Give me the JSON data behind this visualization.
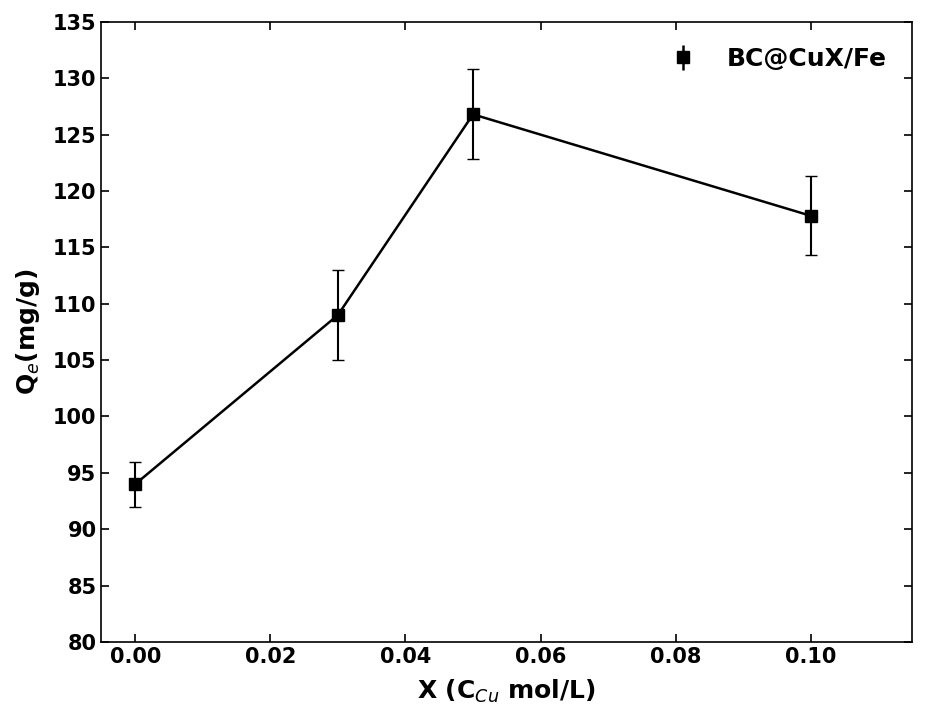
{
  "x": [
    0.0,
    0.03,
    0.05,
    0.1
  ],
  "y": [
    94.0,
    109.0,
    126.8,
    117.8
  ],
  "yerr": [
    2.0,
    4.0,
    4.0,
    3.5
  ],
  "xlabel": "X (C$_{Cu}$ mol/L)",
  "ylabel": "Q$_e$(mg/g)",
  "xlim": [
    -0.005,
    0.115
  ],
  "ylim": [
    80,
    135
  ],
  "xticks": [
    0.0,
    0.02,
    0.04,
    0.06,
    0.08,
    0.1
  ],
  "yticks": [
    80,
    85,
    90,
    95,
    100,
    105,
    110,
    115,
    120,
    125,
    130,
    135
  ],
  "legend_label": "BC@CuX/Fe",
  "line_color": "#000000",
  "marker": "s",
  "marker_size": 9,
  "line_width": 1.8,
  "capsize": 4,
  "elinewidth": 1.5,
  "background_color": "#ffffff",
  "tick_labelsize": 15,
  "axis_labelsize": 18,
  "legend_fontsize": 18
}
